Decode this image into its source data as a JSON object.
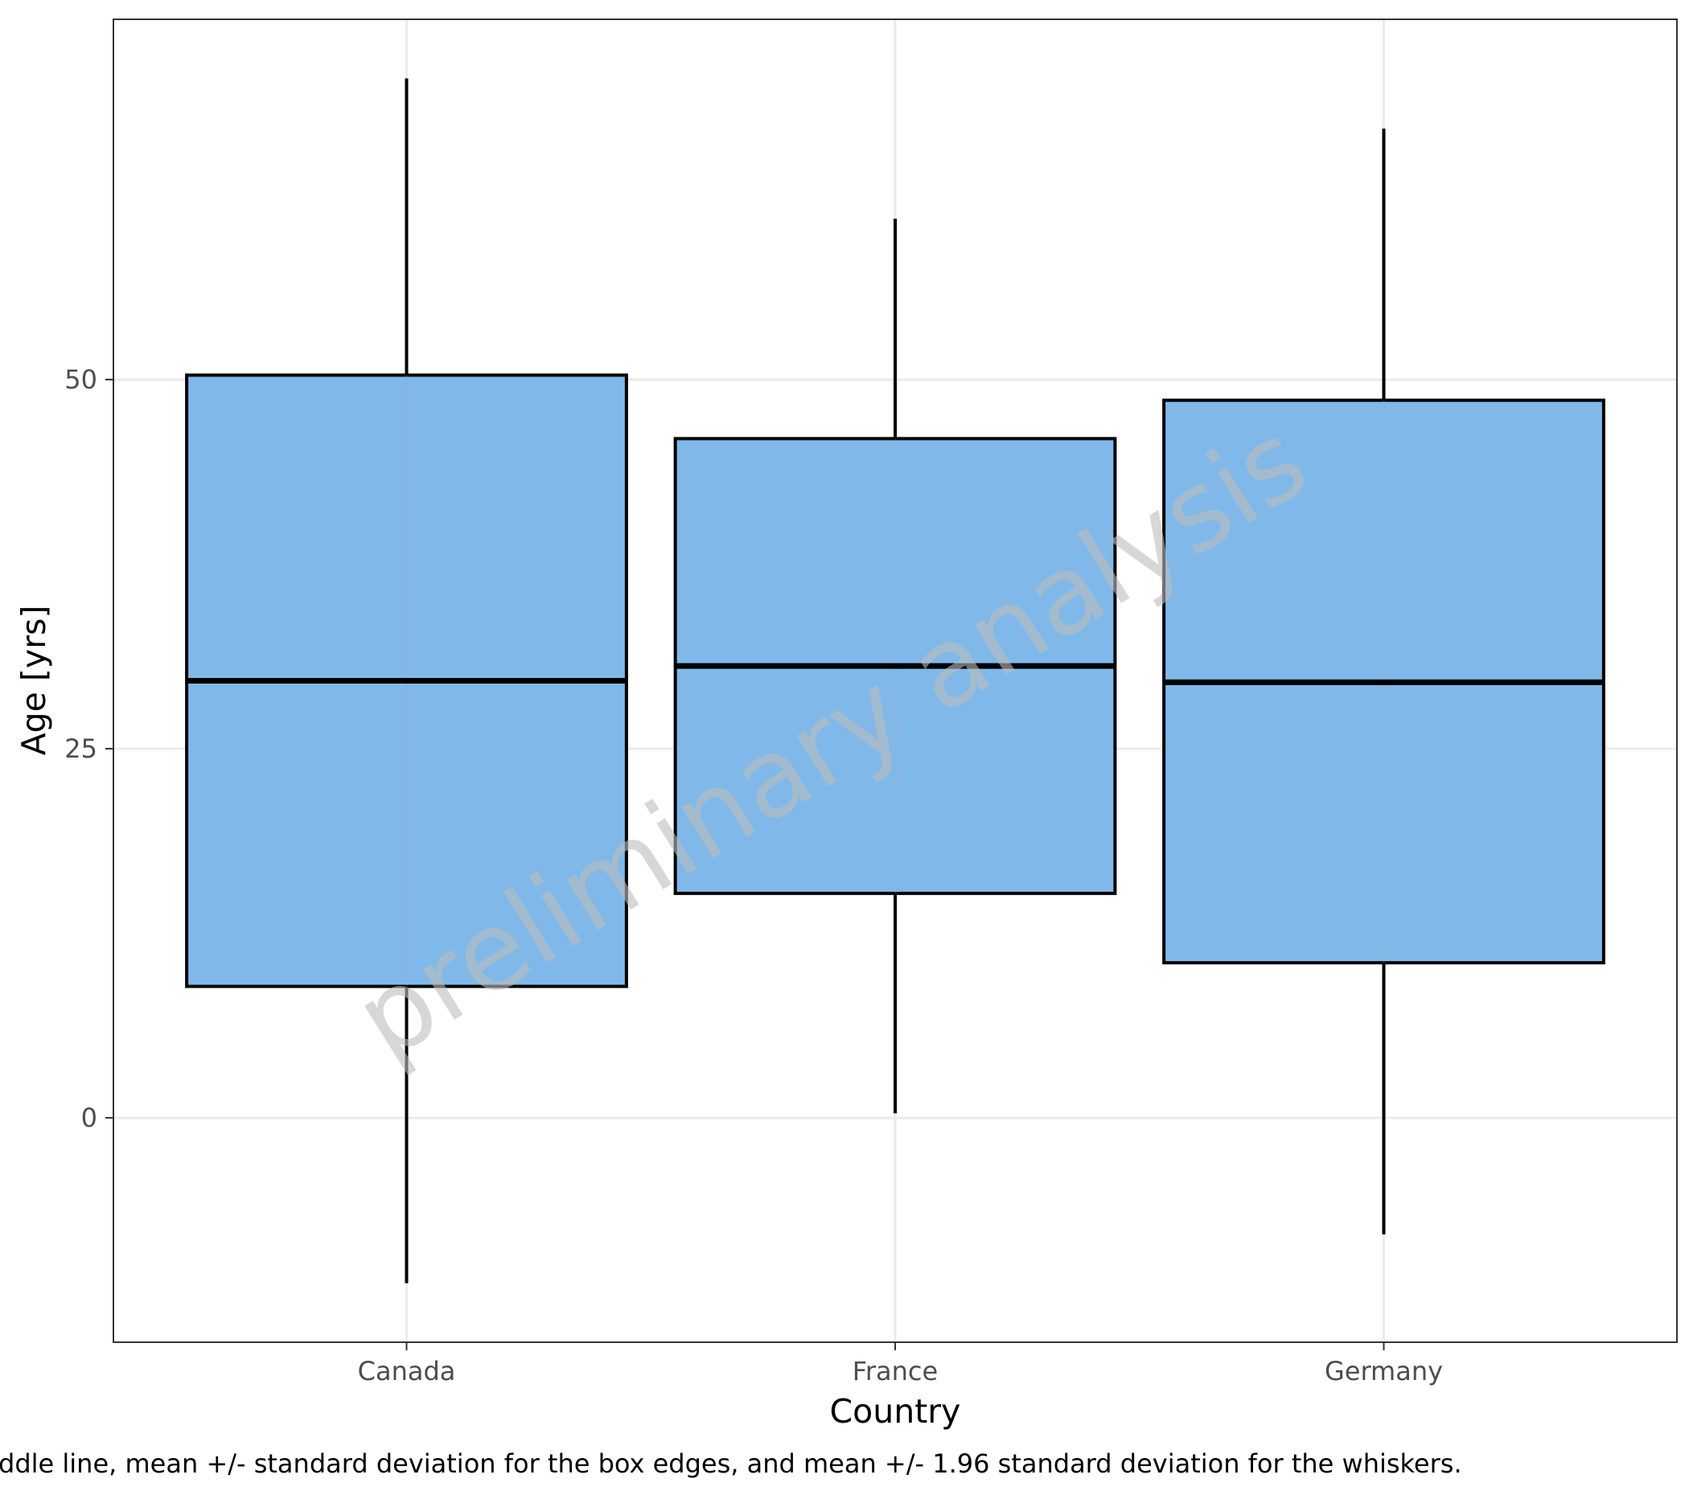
{
  "chart_data": {
    "type": "box",
    "categories": [
      "Canada",
      "France",
      "Germany"
    ],
    "boxes": [
      {
        "category": "Canada",
        "whisker_low": -11.2,
        "q_low": 8.9,
        "center": 29.6,
        "q_high": 50.3,
        "whisker_high": 70.4
      },
      {
        "category": "France",
        "whisker_low": 0.3,
        "q_low": 15.2,
        "center": 30.6,
        "q_high": 46.0,
        "whisker_high": 60.9
      },
      {
        "category": "Germany",
        "whisker_low": -7.9,
        "q_low": 10.5,
        "center": 29.5,
        "q_high": 48.6,
        "whisker_high": 67.0
      }
    ],
    "xlabel": "Country",
    "ylabel": "Age [yrs]",
    "yticks": [
      0,
      25,
      50
    ],
    "ylim": [
      -15.2,
      74.4
    ],
    "grid": true,
    "box_fill": "#80b9e9",
    "box_stroke": "#000000",
    "watermark": "preliminary analysis",
    "caption": "ddle line, mean +/- standard deviation for the box edges, and mean +/- 1.96 standard deviation for the whiskers."
  }
}
